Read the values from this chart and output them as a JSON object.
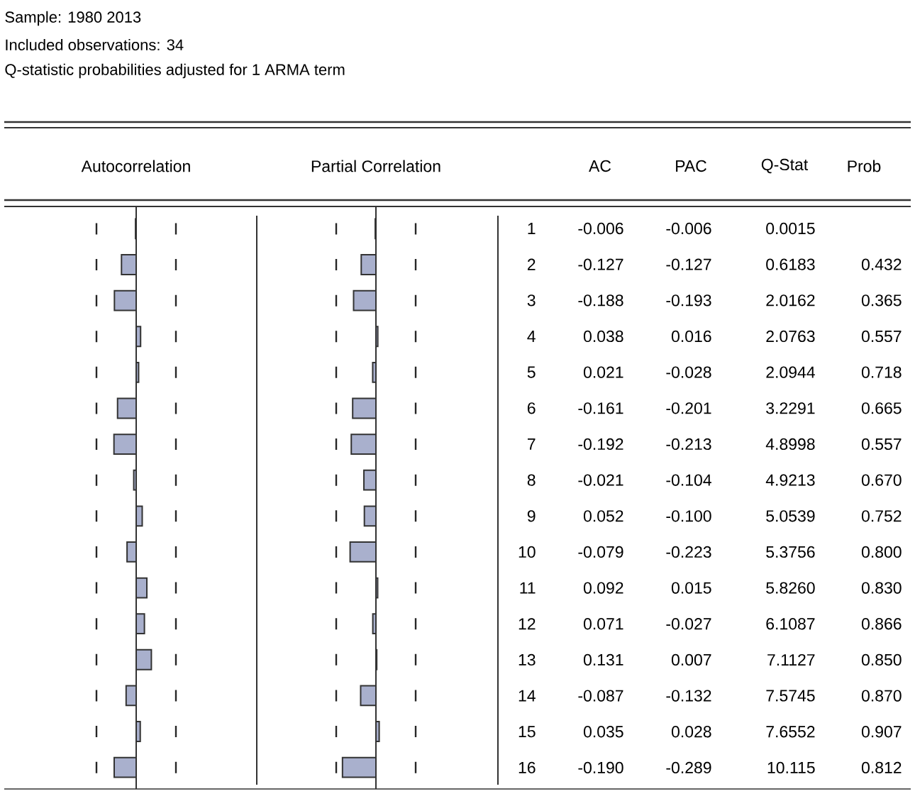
{
  "chart_data": [
    {
      "type": "bar",
      "orientation": "horizontal",
      "title": "Autocorrelation",
      "categories": [
        "1",
        "2",
        "3",
        "4",
        "5",
        "6",
        "7",
        "8",
        "9",
        "10",
        "11",
        "12",
        "13",
        "14",
        "15",
        "16"
      ],
      "tick_labels": false,
      "series": [
        {
          "color": "#a9b0cd",
          "values": [
            -0.006,
            -0.127,
            -0.188,
            0.038,
            0.021,
            -0.161,
            -0.192,
            -0.021,
            0.052,
            -0.079,
            0.092,
            0.071,
            0.131,
            -0.087,
            0.035,
            -0.19
          ],
          "value_labels": [
            "-0.006",
            "-0.127",
            "-0.188",
            "0.038",
            "0.021",
            "-0.161",
            "-0.192",
            "-0.021",
            "0.052",
            "-0.079",
            "0.092",
            "0.071",
            "0.131",
            "-0.087",
            "0.035",
            "-0.190"
          ]
        }
      ],
      "ref_lines": [
        {
          "axis": "x",
          "value": -0.343,
          "line_style": "dashed"
        },
        {
          "axis": "x",
          "value": 0.343,
          "line_style": "dashed"
        }
      ],
      "annotations": [
        "Sample: 1980 2013",
        "Included observations: 34",
        "Q-statistic probabilities adjusted for 1 ARMA term"
      ]
    },
    {
      "type": "bar",
      "orientation": "horizontal",
      "title": "Partial Correlation",
      "categories": [
        "1",
        "2",
        "3",
        "4",
        "5",
        "6",
        "7",
        "8",
        "9",
        "10",
        "11",
        "12",
        "13",
        "14",
        "15",
        "16"
      ],
      "series": [
        {
          "color": "#a9b0cd",
          "values": [
            -0.006,
            -0.127,
            -0.193,
            0.016,
            -0.028,
            -0.201,
            -0.213,
            -0.104,
            -0.1,
            -0.223,
            0.015,
            -0.027,
            0.007,
            -0.132,
            0.028,
            -0.289
          ],
          "value_labels": [
            "-0.006",
            "-0.127",
            "-0.193",
            "0.016",
            "-0.028",
            "-0.201",
            "-0.213",
            "-0.104",
            "-0.100",
            "-0.223",
            "0.015",
            "-0.027",
            "0.007",
            "-0.132",
            "0.028",
            "-0.289"
          ]
        }
      ],
      "ref_lines": [
        {
          "axis": "x",
          "value": -0.343,
          "line_style": "dashed"
        },
        {
          "axis": "x",
          "value": 0.343,
          "line_style": "dashed"
        }
      ]
    },
    {
      "type": "other",
      "annotations": [
        "AC",
        "PAC",
        "Q-Stat",
        "Prob",
        "0.0015",
        "0.6183",
        "2.0162",
        "2.0763",
        "2.0944",
        "3.2291",
        "4.8998",
        "4.9213",
        "5.0539",
        "5.3756",
        "5.8260",
        "6.1087",
        "7.1127",
        "7.5745",
        "7.6552",
        "10.115",
        "0.432",
        "0.365",
        "0.557",
        "0.718",
        "0.665",
        "0.557",
        "0.670",
        "0.752",
        "0.800",
        "0.830",
        "0.866",
        "0.850",
        "0.870",
        "0.907",
        "0.812"
      ]
    }
  ]
}
